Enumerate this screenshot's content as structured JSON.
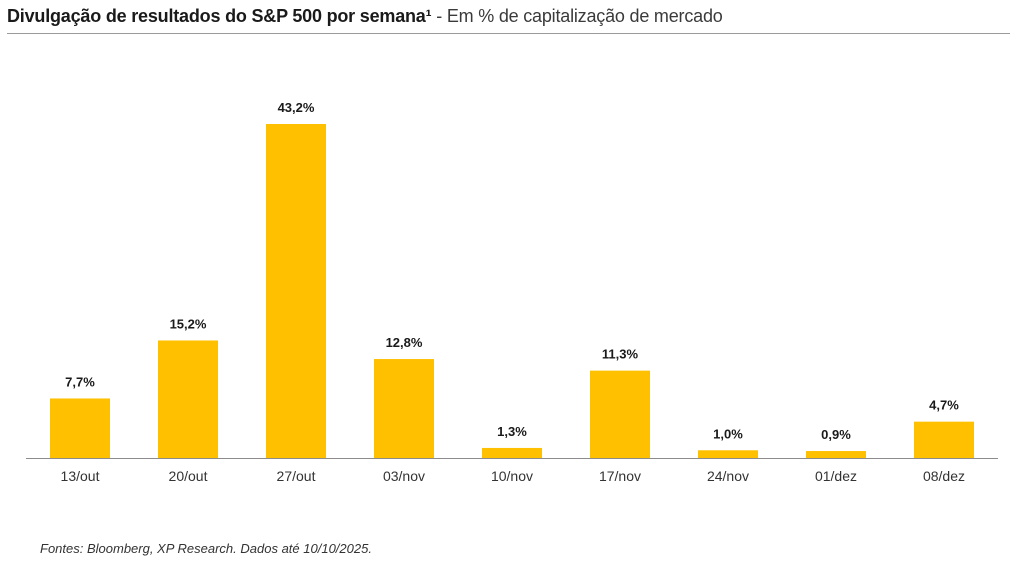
{
  "header": {
    "title_bold": "Divulgação de resultados do S&P 500 por semana¹",
    "title_rest": " - Em % de capitalização de mercado"
  },
  "chart_data": {
    "type": "bar",
    "title": "Divulgação de resultados do S&P 500 por semana¹ - Em % de capitalização de mercado",
    "xlabel": "",
    "ylabel": "",
    "categories": [
      "13/out",
      "20/out",
      "27/out",
      "03/nov",
      "10/nov",
      "17/nov",
      "24/nov",
      "01/dez",
      "08/dez"
    ],
    "values": [
      7.7,
      15.2,
      43.2,
      12.8,
      1.3,
      11.3,
      1.0,
      0.9,
      4.7
    ],
    "value_labels": [
      "7,7%",
      "15,2%",
      "43,2%",
      "12,8%",
      "1,3%",
      "11,3%",
      "1,0%",
      "0,9%",
      "4,7%"
    ],
    "ylim": [
      0,
      43.2
    ],
    "grid": false,
    "legend": "none",
    "bar_color": "#FFC000",
    "axis_color": "#8c8c8c"
  },
  "footer": {
    "source": "Fontes: Bloomberg, XP Research. Dados até 10/10/2025."
  }
}
